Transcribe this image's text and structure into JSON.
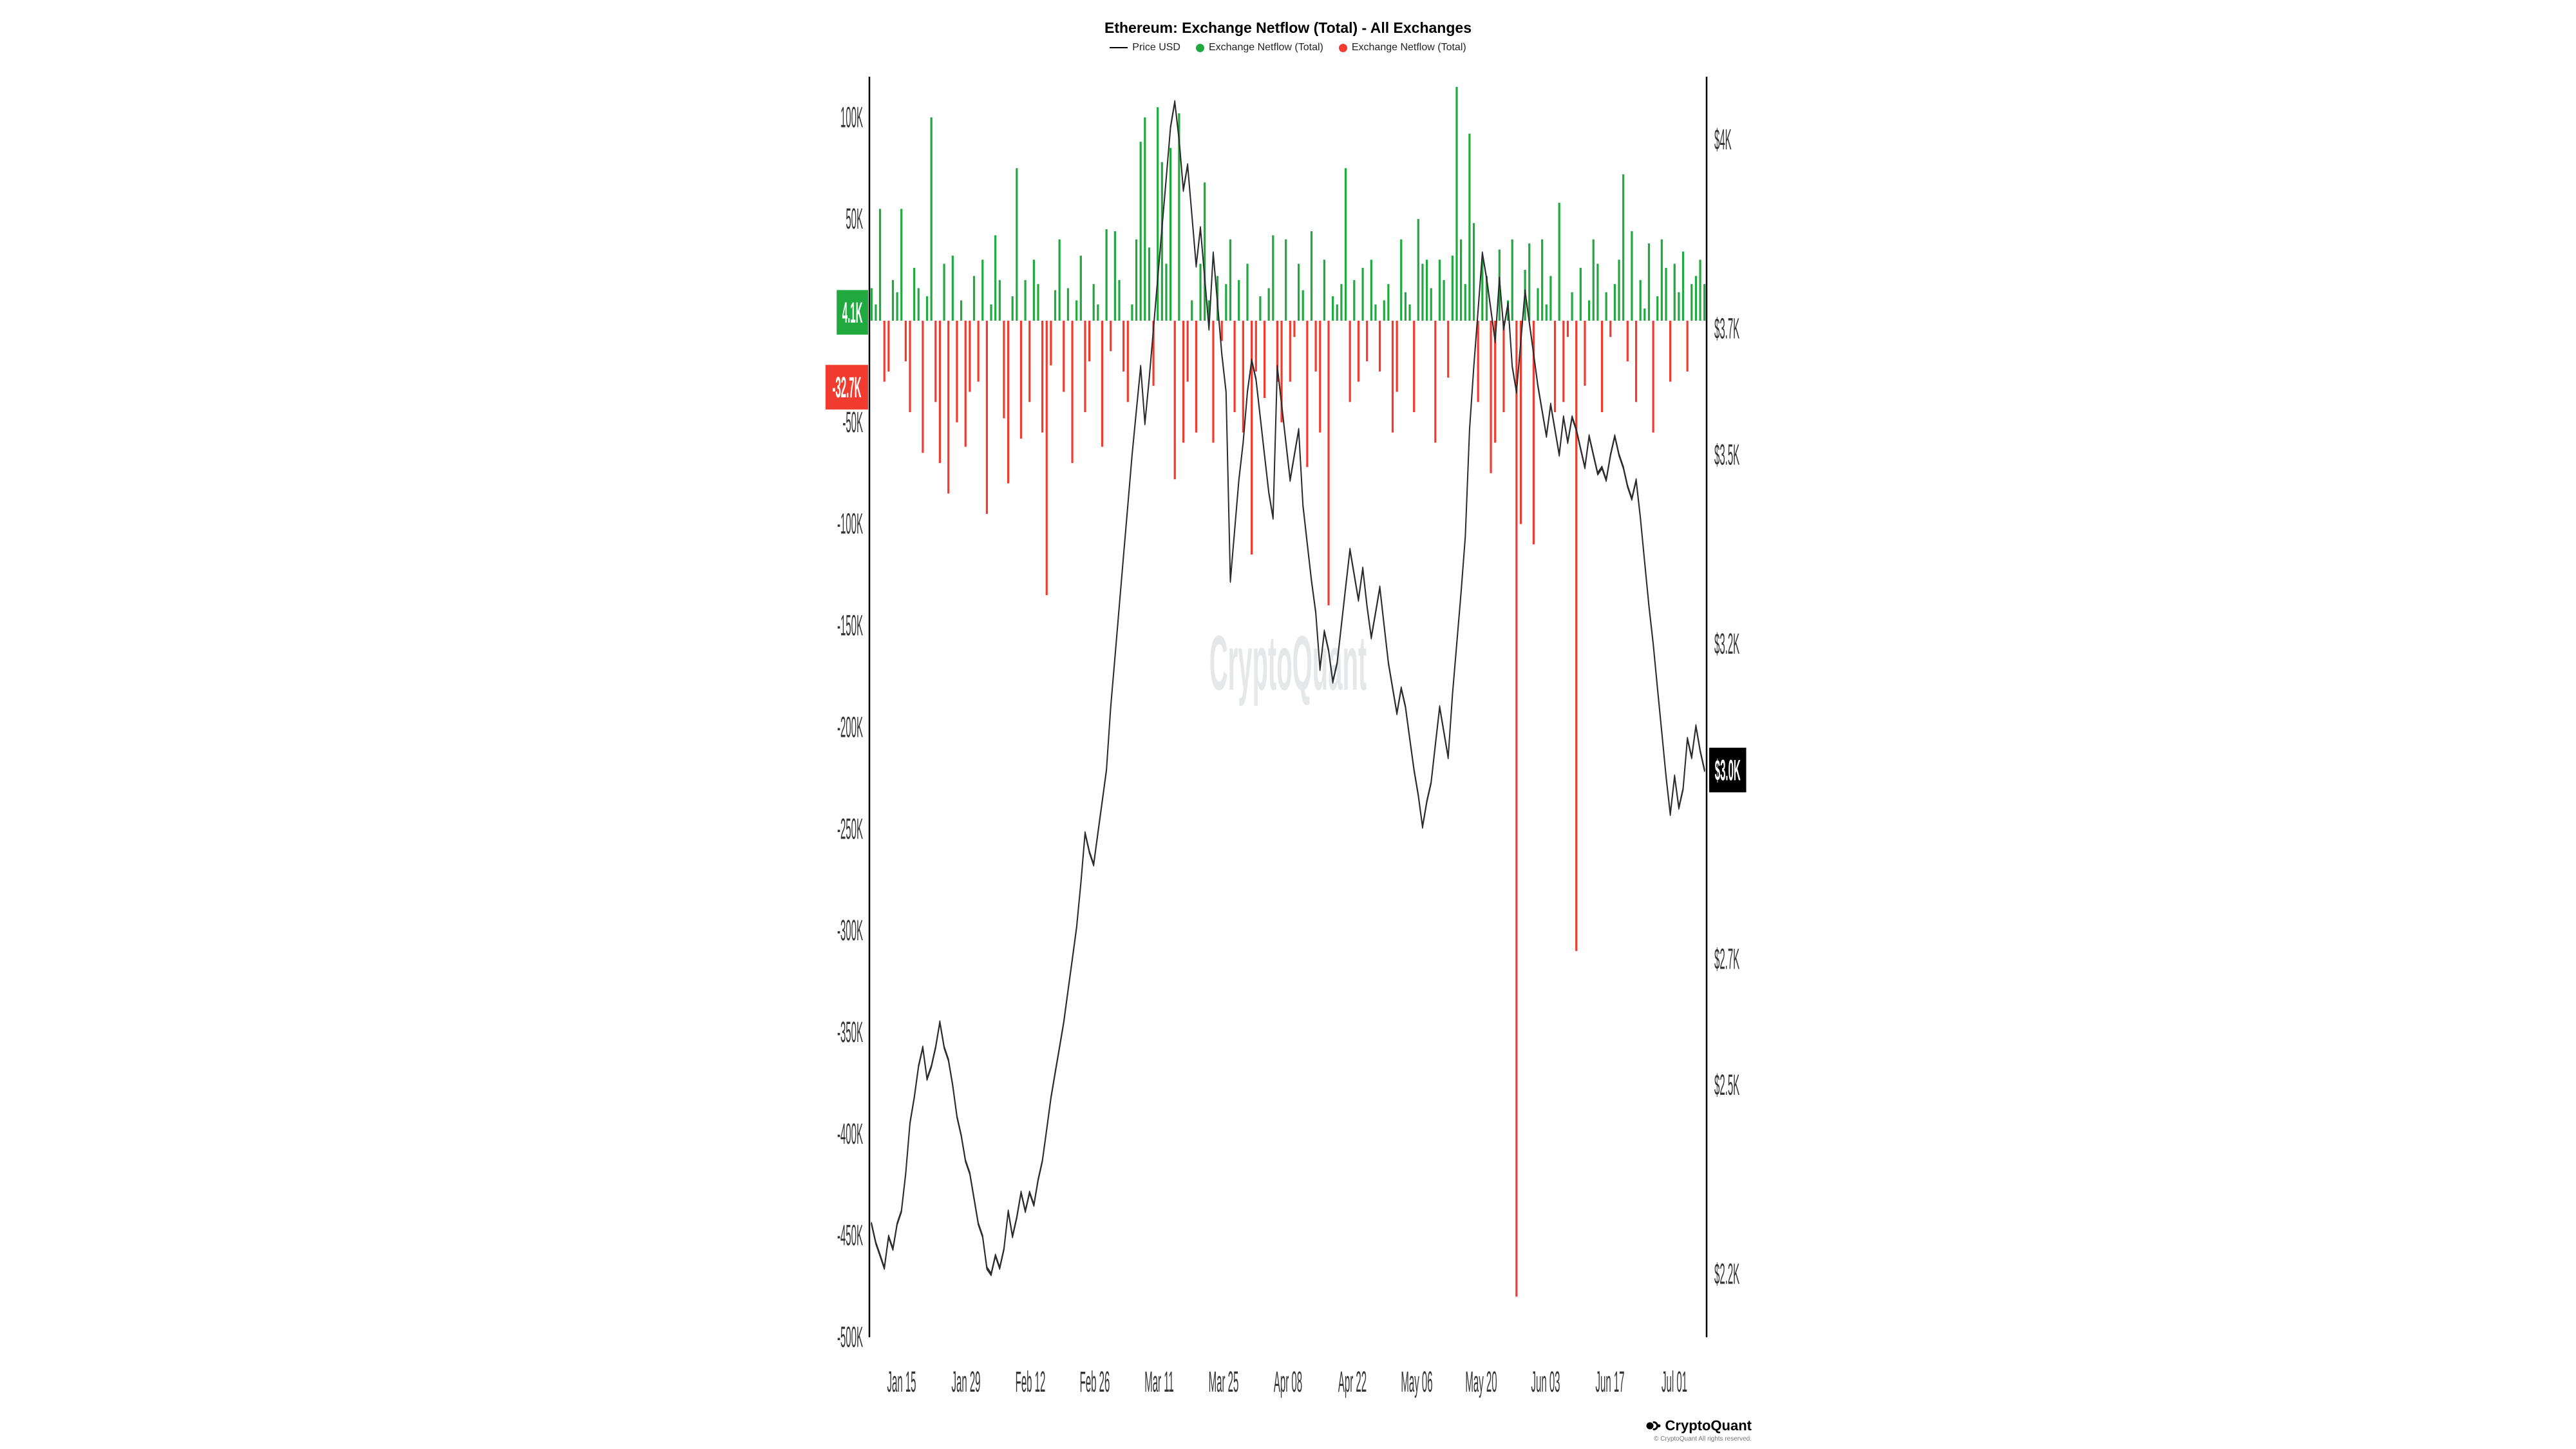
{
  "title": "Ethereum: Exchange Netflow (Total) - All Exchanges",
  "title_fontsize": 23,
  "legend": {
    "fontsize": 16,
    "items": [
      {
        "type": "line",
        "color": "#000000",
        "label": "Price USD"
      },
      {
        "type": "dot",
        "color": "#1fa93e",
        "label": "Exchange Netflow (Total)"
      },
      {
        "type": "dot",
        "color": "#f23b2f",
        "label": "Exchange Netflow (Total)"
      }
    ]
  },
  "watermark": {
    "text": "CryptoQuant",
    "fontsize": 40
  },
  "brand": {
    "text": "CryptoQuant",
    "fontsize": 22
  },
  "copyright": "© CryptoQuant All rights reserved.",
  "copyright_fontsize": 10,
  "chart": {
    "background": "#ffffff",
    "axis_color": "#000000",
    "tick_fontsize": 15,
    "x_labels": [
      "Jan 15",
      "Jan 29",
      "Feb 12",
      "Feb 26",
      "Mar 11",
      "Mar 25",
      "Apr 08",
      "Apr 22",
      "May 06",
      "May 20",
      "Jun 03",
      "Jun 17",
      "Jul 01"
    ],
    "left_axis": {
      "min": -500,
      "max": 120,
      "ticks": [
        -500,
        -450,
        -400,
        -350,
        -300,
        -250,
        -200,
        -150,
        -100,
        -50,
        50,
        100
      ],
      "unit": "K"
    },
    "right_axis": {
      "min": 2100,
      "max": 4100,
      "ticks": [
        {
          "v": 2200,
          "label": "$2.2K"
        },
        {
          "v": 2500,
          "label": "$2.5K"
        },
        {
          "v": 2700,
          "label": "$2.7K"
        },
        {
          "v": 3000,
          "label": "$3K"
        },
        {
          "v": 3200,
          "label": "$3.2K"
        },
        {
          "v": 3500,
          "label": "$3.5K"
        },
        {
          "v": 3700,
          "label": "$3.7K"
        },
        {
          "v": 4000,
          "label": "$4K"
        }
      ]
    },
    "badges": {
      "green": {
        "text": "4.1K",
        "bg": "#1fa93e",
        "value_k": 4.1
      },
      "red": {
        "text": "-32.7K",
        "bg": "#f23b2f",
        "value_k": -32.7
      },
      "price": {
        "text": "$3.0K",
        "bg": "#000000",
        "value": 3000
      }
    },
    "colors": {
      "pos_bar": "#1fa93e",
      "neg_bar": "#f23b2f",
      "price_line": "#2b2b2b"
    },
    "bar_width": 3.2,
    "price_line_width": 2,
    "bars_k": [
      16,
      8,
      55,
      -30,
      -25,
      20,
      14,
      55,
      -20,
      -45,
      26,
      16,
      -65,
      12,
      100,
      -40,
      -70,
      28,
      -85,
      32,
      -50,
      10,
      -62,
      -35,
      22,
      -30,
      30,
      -95,
      8,
      42,
      20,
      -48,
      -80,
      12,
      75,
      -58,
      20,
      -40,
      30,
      18,
      -55,
      -135,
      -22,
      15,
      40,
      -35,
      16,
      -70,
      10,
      32,
      -45,
      -20,
      18,
      8,
      -62,
      45,
      -15,
      44,
      20,
      -25,
      -40,
      8,
      40,
      88,
      100,
      36,
      -32,
      105,
      78,
      28,
      85,
      -78,
      102,
      -60,
      -30,
      10,
      -55,
      28,
      68,
      10,
      -60,
      22,
      -10,
      18,
      40,
      -45,
      20,
      -55,
      28,
      -115,
      -25,
      12,
      -38,
      16,
      42,
      -30,
      -50,
      40,
      -30,
      -8,
      28,
      15,
      -72,
      44,
      -25,
      -55,
      30,
      -140,
      12,
      8,
      18,
      75,
      -40,
      20,
      -30,
      26,
      -20,
      30,
      8,
      -25,
      10,
      18,
      -55,
      -35,
      40,
      14,
      8,
      -45,
      50,
      28,
      30,
      16,
      -60,
      30,
      20,
      -28,
      32,
      115,
      40,
      18,
      92,
      48,
      -40,
      30,
      22,
      -75,
      -60,
      35,
      -45,
      10,
      40,
      -480,
      -100,
      25,
      38,
      -110,
      16,
      40,
      8,
      22,
      -45,
      58,
      -40,
      -8,
      14,
      -310,
      26,
      -32,
      10,
      40,
      28,
      -45,
      14,
      -8,
      18,
      30,
      72,
      -20,
      44,
      -40,
      20,
      6,
      38,
      -55,
      12,
      40,
      26,
      -30,
      28,
      14,
      34,
      -25,
      18,
      22,
      30,
      18
    ],
    "price": [
      2280,
      2250,
      2230,
      2210,
      2260,
      2240,
      2280,
      2300,
      2360,
      2440,
      2480,
      2530,
      2560,
      2510,
      2530,
      2560,
      2600,
      2560,
      2540,
      2500,
      2450,
      2420,
      2380,
      2360,
      2320,
      2280,
      2260,
      2210,
      2200,
      2230,
      2210,
      2240,
      2300,
      2260,
      2290,
      2330,
      2300,
      2330,
      2310,
      2350,
      2380,
      2430,
      2480,
      2520,
      2560,
      2600,
      2650,
      2700,
      2750,
      2820,
      2900,
      2870,
      2850,
      2900,
      2950,
      3000,
      3100,
      3180,
      3260,
      3340,
      3420,
      3500,
      3570,
      3640,
      3550,
      3620,
      3700,
      3780,
      3860,
      3940,
      4020,
      4060,
      4000,
      3920,
      3960,
      3880,
      3800,
      3860,
      3780,
      3700,
      3820,
      3740,
      3660,
      3600,
      3300,
      3380,
      3460,
      3520,
      3600,
      3650,
      3620,
      3560,
      3500,
      3440,
      3400,
      3640,
      3580,
      3520,
      3460,
      3500,
      3540,
      3420,
      3360,
      3300,
      3250,
      3160,
      3220,
      3190,
      3140,
      3170,
      3230,
      3290,
      3350,
      3310,
      3270,
      3320,
      3260,
      3210,
      3250,
      3290,
      3230,
      3170,
      3130,
      3090,
      3130,
      3100,
      3050,
      3000,
      2960,
      2910,
      2950,
      2980,
      3040,
      3100,
      3060,
      3020,
      3120,
      3200,
      3280,
      3370,
      3540,
      3640,
      3730,
      3820,
      3780,
      3730,
      3680,
      3780,
      3700,
      3740,
      3640,
      3600,
      3680,
      3760,
      3710,
      3660,
      3610,
      3570,
      3530,
      3580,
      3540,
      3500,
      3560,
      3520,
      3560,
      3540,
      3510,
      3480,
      3530,
      3500,
      3470,
      3480,
      3460,
      3500,
      3530,
      3500,
      3480,
      3450,
      3430,
      3460,
      3400,
      3330,
      3260,
      3200,
      3130,
      3060,
      2990,
      2930,
      2990,
      2940,
      2970,
      3050,
      3020,
      3070,
      3030,
      3000
    ]
  }
}
